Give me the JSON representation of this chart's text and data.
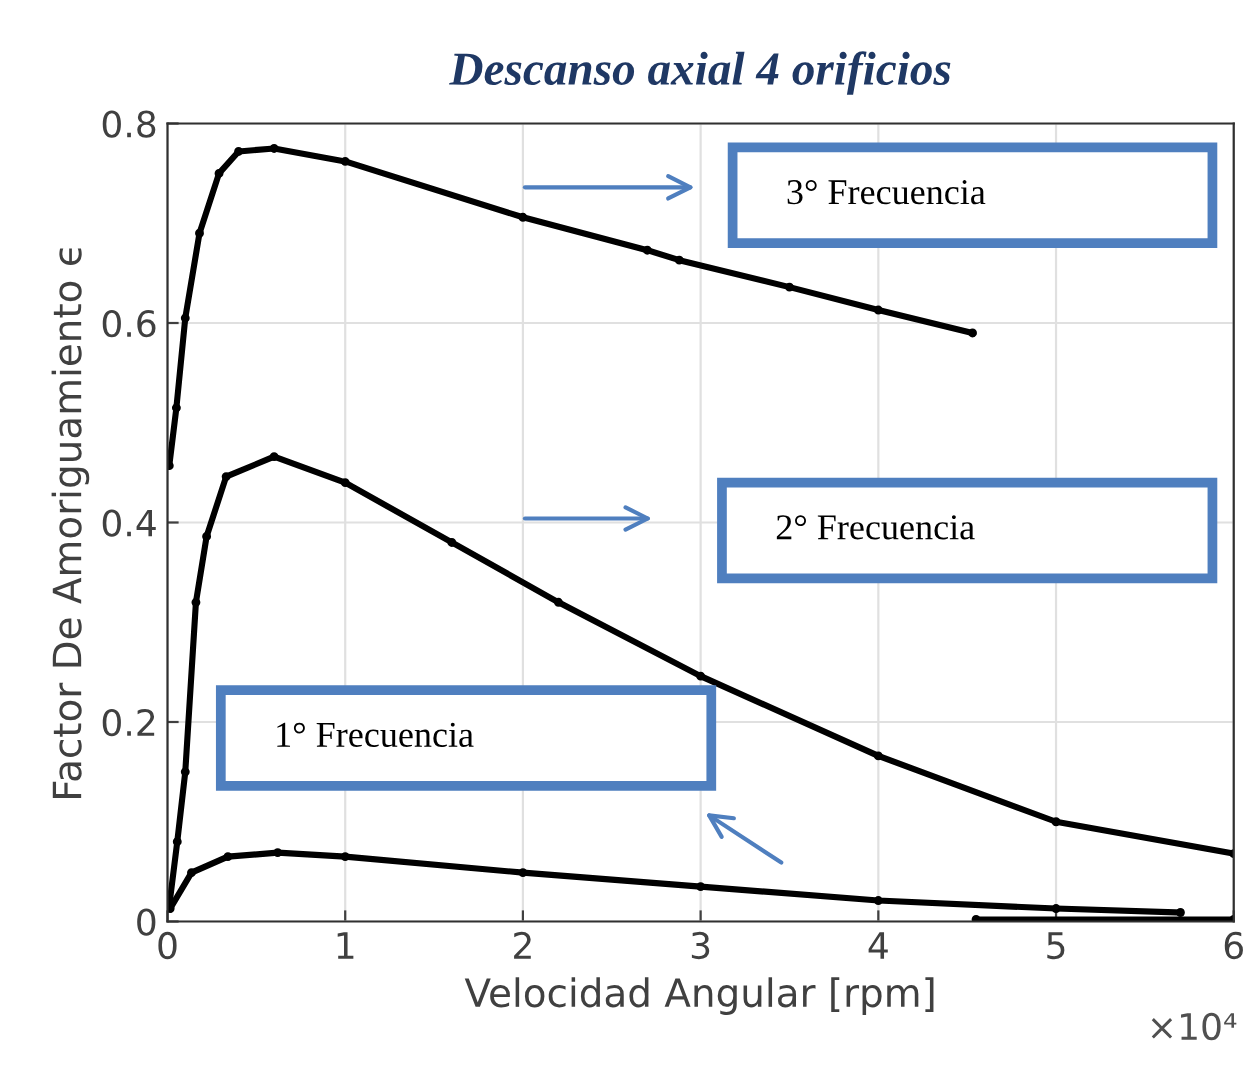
{
  "chart_data": {
    "type": "line",
    "title": "Descanso axial 4 orificios",
    "xlabel": "Velocidad Angular [rpm]",
    "ylabel": "Factor De Amoriguamiento ϵ",
    "xlim": [
      0,
      6
    ],
    "xticks": [
      0,
      1,
      2,
      3,
      4,
      5,
      6
    ],
    "ylim": [
      0,
      0.8
    ],
    "yticks": [
      0,
      0.2,
      0.4,
      0.6,
      0.8
    ],
    "grid": true,
    "legend": false,
    "marker": "circle",
    "line_style": "solid",
    "series": [
      {
        "color": "#000000",
        "x": [
          0.01,
          0.05,
          0.1,
          0.18,
          0.29,
          0.4,
          0.6,
          1.0,
          2.0,
          2.7,
          2.88,
          3.5,
          4.0,
          4.53
        ],
        "values": [
          0.457,
          0.515,
          0.605,
          0.69,
          0.75,
          0.772,
          0.775,
          0.762,
          0.706,
          0.673,
          0.663,
          0.636,
          0.613,
          0.59
        ]
      },
      {
        "color": "#000000",
        "x": [
          0.01,
          0.055,
          0.1,
          0.16,
          0.22,
          0.33,
          0.6,
          1.0,
          1.6,
          2.2,
          3.0,
          4.0,
          5.0,
          6.0
        ],
        "values": [
          0.016,
          0.08,
          0.15,
          0.32,
          0.386,
          0.446,
          0.466,
          0.44,
          0.38,
          0.32,
          0.246,
          0.166,
          0.1,
          0.068
        ]
      },
      {
        "color": "#000000",
        "x": [
          0.015,
          0.135,
          0.34,
          0.62,
          1.0,
          2.0,
          3.0,
          4.0,
          5.0,
          5.7
        ],
        "values": [
          0.013,
          0.049,
          0.065,
          0.069,
          0.065,
          0.049,
          0.035,
          0.021,
          0.013,
          0.009
        ]
      },
      {
        "color": "#000000",
        "x": [
          4.55,
          6.0
        ],
        "values": [
          0.002,
          0.002
        ]
      }
    ],
    "annotations": [
      "3° Frecuencia",
      "2° Frecuencia",
      "1° Frecuencia",
      "×10⁴"
    ]
  }
}
